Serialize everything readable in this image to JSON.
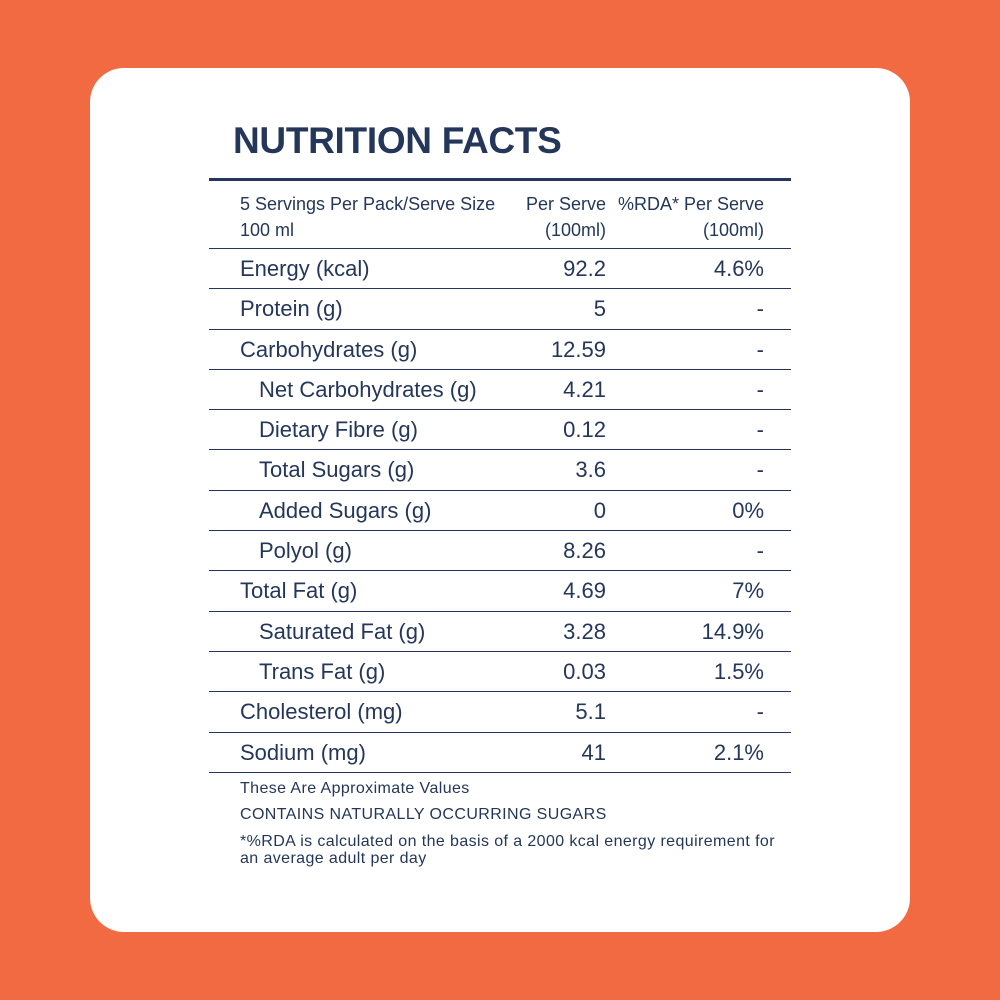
{
  "title": "NUTRITION FACTS",
  "header": {
    "col1": "5 Servings Per Pack/Serve Size 100 ml",
    "col2": "Per Serve (100ml)",
    "col3": "%RDA* Per Serve (100ml)"
  },
  "rows": [
    {
      "label": "Energy (kcal)",
      "per_serve": "92.2",
      "rda": "4.6%",
      "indent": false
    },
    {
      "label": "Protein (g)",
      "per_serve": "5",
      "rda": "-",
      "indent": false
    },
    {
      "label": "Carbohydrates (g)",
      "per_serve": "12.59",
      "rda": "-",
      "indent": false
    },
    {
      "label": "Net Carbohydrates (g)",
      "per_serve": "4.21",
      "rda": "-",
      "indent": true
    },
    {
      "label": "Dietary Fibre (g)",
      "per_serve": "0.12",
      "rda": "-",
      "indent": true
    },
    {
      "label": "Total Sugars (g)",
      "per_serve": "3.6",
      "rda": "-",
      "indent": true
    },
    {
      "label": "Added Sugars (g)",
      "per_serve": "0",
      "rda": "0%",
      "indent": true
    },
    {
      "label": "Polyol (g)",
      "per_serve": "8.26",
      "rda": "-",
      "indent": true
    },
    {
      "label": "Total Fat (g)",
      "per_serve": "4.69",
      "rda": "7%",
      "indent": false
    },
    {
      "label": "Saturated Fat (g)",
      "per_serve": "3.28",
      "rda": "14.9%",
      "indent": true
    },
    {
      "label": "Trans Fat (g)",
      "per_serve": "0.03",
      "rda": "1.5%",
      "indent": true
    },
    {
      "label": "Cholesterol (mg)",
      "per_serve": "5.1",
      "rda": "-",
      "indent": false
    },
    {
      "label": "Sodium (mg)",
      "per_serve": "41",
      "rda": "2.1%",
      "indent": false
    }
  ],
  "notes": {
    "approx": "These Are Approximate Values",
    "sugars": "CONTAINS NATURALLY OCCURRING SUGARS",
    "rda_note": "*%RDA is calculated on the basis of a 2000 kcal energy requirement for an average adult per day"
  },
  "colors": {
    "background": "#F26A42",
    "card": "#FFFFFF",
    "text": "#24375A"
  }
}
